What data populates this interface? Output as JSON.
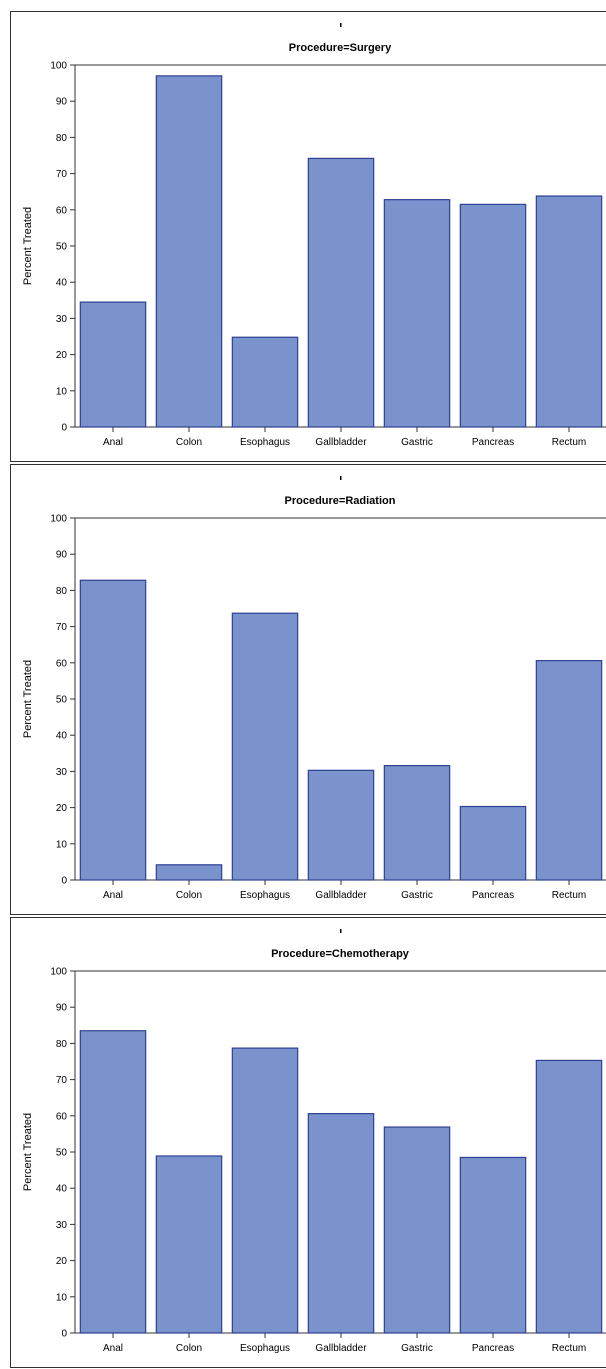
{
  "style": {
    "bar_fill": "#7a93cc",
    "bar_stroke": "#2e3f94",
    "axis_color": "#333333"
  },
  "chart_data": [
    {
      "type": "bar",
      "title": "Procedure=Surgery",
      "ylabel": "Percent Treated",
      "xlabel": "",
      "ylim": [
        0,
        100
      ],
      "yticks": [
        0,
        10,
        20,
        30,
        40,
        50,
        60,
        70,
        80,
        90,
        100
      ],
      "categories": [
        "Anal",
        "Colon",
        "Esophagus",
        "Gallbladder",
        "Gastric",
        "Pancreas",
        "Rectum"
      ],
      "values": [
        34.5,
        97,
        24.8,
        74.2,
        62.8,
        61.5,
        63.8
      ],
      "legend": "none",
      "grid": false
    },
    {
      "type": "bar",
      "title": "Procedure=Radiation",
      "ylabel": "Percent Treated",
      "xlabel": "",
      "ylim": [
        0,
        100
      ],
      "yticks": [
        0,
        10,
        20,
        30,
        40,
        50,
        60,
        70,
        80,
        90,
        100
      ],
      "categories": [
        "Anal",
        "Colon",
        "Esophagus",
        "Gallbladder",
        "Gastric",
        "Pancreas",
        "Rectum"
      ],
      "values": [
        82.8,
        4.2,
        73.7,
        30.3,
        31.6,
        20.3,
        60.6
      ],
      "legend": "none",
      "grid": false
    },
    {
      "type": "bar",
      "title": "Procedure=Chemotherapy",
      "ylabel": "Percent Treated",
      "xlabel": "",
      "ylim": [
        0,
        100
      ],
      "yticks": [
        0,
        10,
        20,
        30,
        40,
        50,
        60,
        70,
        80,
        90,
        100
      ],
      "categories": [
        "Anal",
        "Colon",
        "Esophagus",
        "Gallbladder",
        "Gastric",
        "Pancreas",
        "Rectum"
      ],
      "values": [
        83.5,
        48.9,
        78.7,
        60.6,
        56.9,
        48.5,
        75.3
      ],
      "legend": "none",
      "grid": false
    }
  ]
}
